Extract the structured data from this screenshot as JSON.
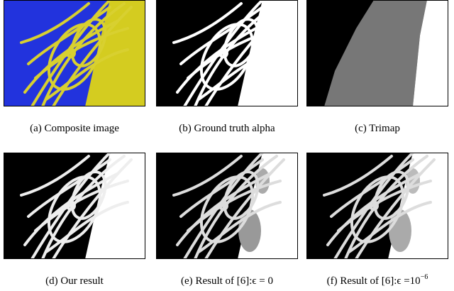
{
  "panels": [
    {
      "label": "(a)",
      "text": "Composite image"
    },
    {
      "label": "(b)",
      "text": "Ground truth alpha"
    },
    {
      "label": "(c)",
      "text": "Trimap"
    },
    {
      "label": "(d)",
      "text": "Our result"
    },
    {
      "label": "(e)",
      "text": "Result of [6]:ϵ = 0"
    },
    {
      "label": "(f)",
      "text": "Result of [6]:ϵ =10",
      "superscript": "−6"
    }
  ]
}
